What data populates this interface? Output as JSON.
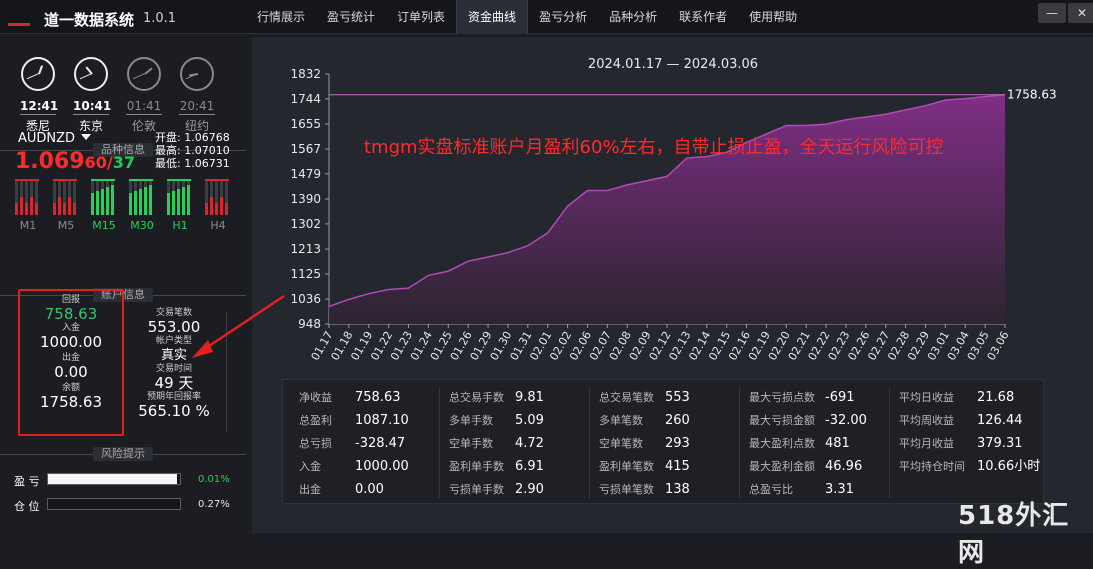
{
  "app": {
    "title": "道一数据系统",
    "version": "1.0.1"
  },
  "tabs": [
    {
      "label": "行情展示",
      "active": false
    },
    {
      "label": "盈亏统计",
      "active": false
    },
    {
      "label": "订单列表",
      "active": false
    },
    {
      "label": "资金曲线",
      "active": true
    },
    {
      "label": "盈亏分析",
      "active": false
    },
    {
      "label": "品种分析",
      "active": false
    },
    {
      "label": "联系作者",
      "active": false
    },
    {
      "label": "使用帮助",
      "active": false
    }
  ],
  "window": {
    "minimize": "—",
    "close": "✕"
  },
  "clocks": [
    {
      "time": "12:41",
      "city": "悉尼",
      "active": true,
      "hour": 12,
      "minute": 41
    },
    {
      "time": "10:41",
      "city": "东京",
      "active": true,
      "hour": 10,
      "minute": 41
    },
    {
      "time": "01:41",
      "city": "伦敦",
      "active": false,
      "hour": 1,
      "minute": 41
    },
    {
      "time": "20:41",
      "city": "纽约",
      "active": false,
      "hour": 20,
      "minute": 41
    }
  ],
  "symbol_section": {
    "header": "品种信息",
    "symbol": "AUDNZD",
    "open_label": "开盘:",
    "open": "1.06768",
    "high_label": "最高:",
    "high": "1.07010",
    "low_label": "最低:",
    "low": "1.06731",
    "price_main": "1.069",
    "price_tail": "60",
    "price_sep": "/",
    "price_spread": "37",
    "timeframes": [
      "M1",
      "M5",
      "M15",
      "M30",
      "H1",
      "H4"
    ],
    "timeframe_colors": [
      "#8a8a8a",
      "#8a8a8a",
      "#26d05a",
      "#26d05a",
      "#26d05a",
      "#8a8a8a"
    ],
    "colors": {
      "price": "#ff2a2a",
      "spread": "#1ecc55"
    }
  },
  "account_section": {
    "header": "账户信息",
    "profit_label": "回报",
    "profit": "758.63",
    "deposit_label": "入金",
    "deposit": "1000.00",
    "withdraw_label": "出金",
    "withdraw": "0.00",
    "balance_label": "余额",
    "balance": "1758.63",
    "trades_label": "交易笔数",
    "trades": "553.00",
    "type_label": "帐户类型",
    "type": "真实",
    "time_label": "交易时间",
    "time": "49 天",
    "annual_label": "预期年回报率",
    "annual": "565.10 %"
  },
  "risk_section": {
    "header": "风险提示",
    "pl_label": "盈  亏",
    "pl_value": "0.01%",
    "pl_fill": 0.98,
    "pos_label": "仓  位",
    "pos_value": "0.27%",
    "pos_fill": 0.0
  },
  "chart_data": {
    "type": "area",
    "title": "2024.01.17 — 2024.03.06",
    "annotation": "tmgm实盘标准账户月盈利60%左右，自带止损止盈，全天运行风险可控",
    "last_value_label": "1758.63",
    "ylim": [
      948,
      1832
    ],
    "y_ticks": [
      "948",
      "1036",
      "1125",
      "1213",
      "1302",
      "1390",
      "1479",
      "1567",
      "1655",
      "1744",
      "1832"
    ],
    "x": [
      "01.17",
      "01.18",
      "01.19",
      "01.22",
      "01.23",
      "01.24",
      "01.25",
      "01.26",
      "01.29",
      "01.30",
      "01.31",
      "02.01",
      "02.02",
      "02.06",
      "02.07",
      "02.08",
      "02.09",
      "02.12",
      "02.13",
      "02.14",
      "02.15",
      "02.16",
      "02.19",
      "02.20",
      "02.21",
      "02.22",
      "02.23",
      "02.26",
      "02.27",
      "02.28",
      "02.29",
      "03.01",
      "03.04",
      "03.05",
      "03.06"
    ],
    "values": [
      1010,
      1035,
      1055,
      1070,
      1075,
      1120,
      1135,
      1170,
      1185,
      1200,
      1225,
      1270,
      1365,
      1420,
      1420,
      1440,
      1455,
      1470,
      1535,
      1540,
      1555,
      1590,
      1620,
      1650,
      1650,
      1655,
      1670,
      1680,
      1690,
      1705,
      1720,
      1740,
      1745,
      1752,
      1758.63
    ],
    "reference_line": 1758.63,
    "colors": {
      "line": "#b04bb5",
      "fill_top": "#8a2f8f",
      "fill_bottom": "#2c2430",
      "annotation": "#ff2a2a"
    }
  },
  "stats": {
    "columns": [
      [
        {
          "label": "净收益",
          "value": "758.63"
        },
        {
          "label": "总盈利",
          "value": "1087.10"
        },
        {
          "label": "总亏损",
          "value": "-328.47"
        },
        {
          "label": "入金",
          "value": "1000.00"
        },
        {
          "label": "出金",
          "value": "0.00"
        }
      ],
      [
        {
          "label": "总交易手数",
          "value": "9.81"
        },
        {
          "label": "多单手数",
          "value": "5.09"
        },
        {
          "label": "空单手数",
          "value": "4.72"
        },
        {
          "label": "盈利单手数",
          "value": "6.91"
        },
        {
          "label": "亏损单手数",
          "value": "2.90"
        }
      ],
      [
        {
          "label": "总交易笔数",
          "value": "553"
        },
        {
          "label": "多单笔数",
          "value": "260"
        },
        {
          "label": "空单笔数",
          "value": "293"
        },
        {
          "label": "盈利单笔数",
          "value": "415"
        },
        {
          "label": "亏损单笔数",
          "value": "138"
        }
      ],
      [
        {
          "label": "最大亏损点数",
          "value": "-691"
        },
        {
          "label": "最大亏损金额",
          "value": "-32.00"
        },
        {
          "label": "最大盈利点数",
          "value": "481"
        },
        {
          "label": "最大盈利金额",
          "value": "46.96"
        },
        {
          "label": "总盈亏比",
          "value": "3.31"
        }
      ],
      [
        {
          "label": "平均日收益",
          "value": "21.68"
        },
        {
          "label": "平均周收益",
          "value": "126.44"
        },
        {
          "label": "平均月收益",
          "value": "379.31"
        },
        {
          "label": "平均持仓时间",
          "value": "10.66小时"
        }
      ]
    ]
  },
  "watermark": "518外汇网"
}
